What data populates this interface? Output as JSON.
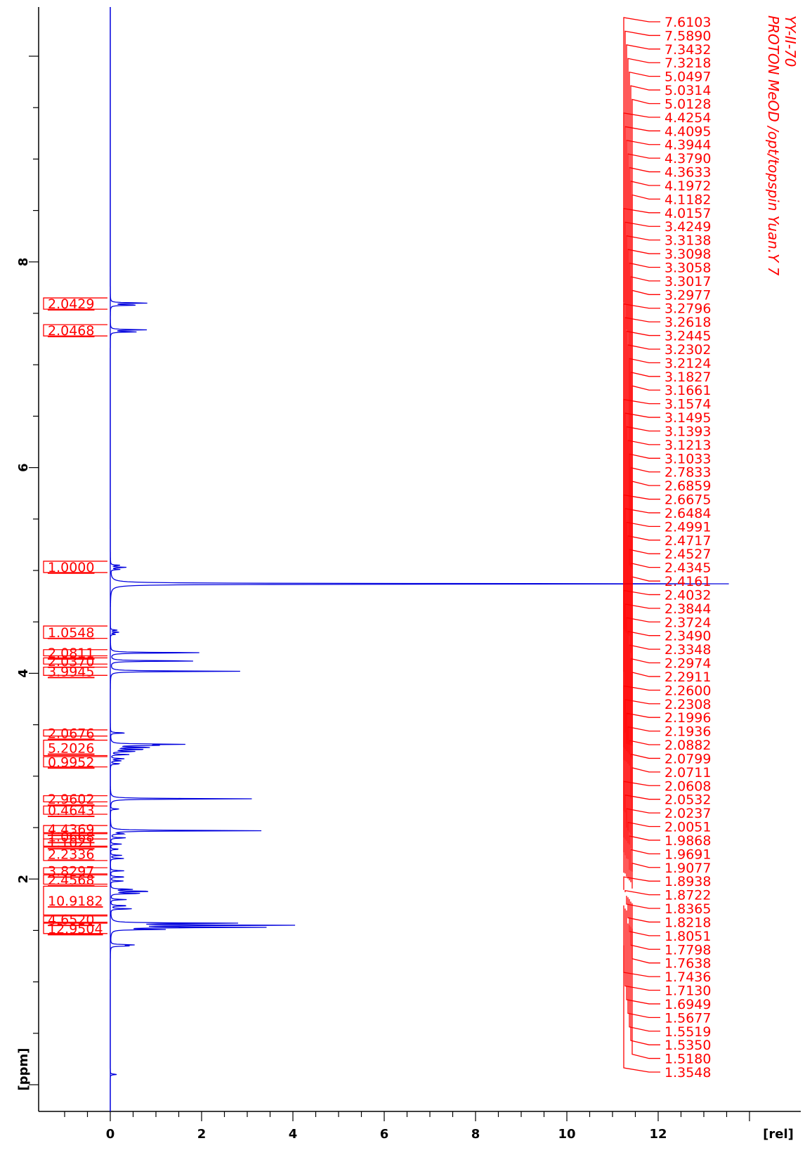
{
  "chart_data": {
    "type": "line",
    "title_lines": [
      "YY-II-70",
      "PROTON MeOD /opt/topspin Yuan.Y 7"
    ],
    "ppm_axis": {
      "label": "[ppm]",
      "range": [
        0.0,
        10.5
      ],
      "ticks": [
        2,
        4,
        6,
        8
      ],
      "tick_labels": [
        "2",
        "4",
        "6",
        "8"
      ]
    },
    "rel_axis": {
      "label": "[rel]",
      "range": [
        -1.45,
        14.0
      ],
      "ticks": [
        0,
        2,
        4,
        6,
        8,
        10,
        12
      ],
      "tick_labels": [
        "0",
        "2",
        "4",
        "6",
        "8",
        "10",
        "12"
      ]
    },
    "peaks": [
      {
        "ppm": 7.6,
        "height": 0.85
      },
      {
        "ppm": 7.58,
        "height": 0.62
      },
      {
        "ppm": 7.34,
        "height": 0.8
      },
      {
        "ppm": 7.32,
        "height": 0.6
      },
      {
        "ppm": 5.05,
        "height": 0.22
      },
      {
        "ppm": 5.03,
        "height": 0.35
      },
      {
        "ppm": 5.01,
        "height": 0.2
      },
      {
        "ppm": 4.87,
        "height": 13.6
      },
      {
        "ppm": 4.42,
        "height": 0.15
      },
      {
        "ppm": 4.4,
        "height": 0.2
      },
      {
        "ppm": 4.38,
        "height": 0.12
      },
      {
        "ppm": 4.2,
        "height": 2.05
      },
      {
        "ppm": 4.12,
        "height": 2.0
      },
      {
        "ppm": 4.02,
        "height": 2.85
      },
      {
        "ppm": 3.42,
        "height": 0.35
      },
      {
        "ppm": 3.31,
        "height": 1.55
      },
      {
        "ppm": 3.3,
        "height": 0.95
      },
      {
        "ppm": 3.28,
        "height": 0.9
      },
      {
        "ppm": 3.26,
        "height": 0.8
      },
      {
        "ppm": 3.24,
        "height": 0.55
      },
      {
        "ppm": 3.21,
        "height": 0.4
      },
      {
        "ppm": 3.17,
        "height": 0.3
      },
      {
        "ppm": 3.15,
        "height": 0.25
      },
      {
        "ppm": 3.12,
        "height": 0.22
      },
      {
        "ppm": 2.78,
        "height": 3.1
      },
      {
        "ppm": 2.68,
        "height": 0.2
      },
      {
        "ppm": 2.47,
        "height": 3.45
      },
      {
        "ppm": 2.44,
        "height": 0.3
      },
      {
        "ppm": 2.4,
        "height": 0.35
      },
      {
        "ppm": 2.34,
        "height": 0.25
      },
      {
        "ppm": 2.29,
        "height": 0.2
      },
      {
        "ppm": 2.23,
        "height": 0.25
      },
      {
        "ppm": 2.2,
        "height": 0.3
      },
      {
        "ppm": 2.08,
        "height": 0.3
      },
      {
        "ppm": 2.02,
        "height": 0.35
      },
      {
        "ppm": 1.98,
        "height": 0.3
      },
      {
        "ppm": 1.9,
        "height": 0.5
      },
      {
        "ppm": 1.88,
        "height": 0.95
      },
      {
        "ppm": 1.86,
        "height": 0.7
      },
      {
        "ppm": 1.8,
        "height": 0.35
      },
      {
        "ppm": 1.74,
        "height": 0.4
      },
      {
        "ppm": 1.71,
        "height": 0.5
      },
      {
        "ppm": 1.57,
        "height": 2.9
      },
      {
        "ppm": 1.55,
        "height": 3.95
      },
      {
        "ppm": 1.53,
        "height": 3.25
      },
      {
        "ppm": 1.51,
        "height": 1.1
      },
      {
        "ppm": 1.36,
        "height": 0.5
      },
      {
        "ppm": 1.35,
        "height": 0.4
      },
      {
        "ppm": 0.1,
        "height": 0.15
      }
    ],
    "peak_labels": [
      "7.6103",
      "7.5890",
      "7.3432",
      "7.3218",
      "5.0497",
      "5.0314",
      "5.0128",
      "4.4254",
      "4.4095",
      "4.3944",
      "4.3790",
      "4.3633",
      "4.1972",
      "4.1182",
      "4.0157",
      "3.4249",
      "3.3138",
      "3.3098",
      "3.3058",
      "3.3017",
      "3.2977",
      "3.2796",
      "3.2618",
      "3.2445",
      "3.2302",
      "3.2124",
      "3.1827",
      "3.1661",
      "3.1574",
      "3.1495",
      "3.1393",
      "3.1213",
      "3.1033",
      "2.7833",
      "2.6859",
      "2.6675",
      "2.6484",
      "2.4991",
      "2.4717",
      "2.4527",
      "2.4345",
      "2.4161",
      "2.4032",
      "2.3844",
      "2.3724",
      "2.3490",
      "2.3348",
      "2.2974",
      "2.2911",
      "2.2600",
      "2.2308",
      "2.1996",
      "2.1936",
      "2.0882",
      "2.0799",
      "2.0711",
      "2.0608",
      "2.0532",
      "2.0237",
      "2.0051",
      "1.9868",
      "1.9691",
      "1.9077",
      "1.8938",
      "1.8722",
      "1.8365",
      "1.8218",
      "1.8051",
      "1.7798",
      "1.7638",
      "1.7436",
      "1.7130",
      "1.6949",
      "1.5677",
      "1.5519",
      "1.5350",
      "1.5180",
      "1.3548"
    ],
    "integrals": [
      {
        "label": "2.0429",
        "from": 7.65,
        "to": 7.54
      },
      {
        "label": "2.0468",
        "from": 7.39,
        "to": 7.28
      },
      {
        "label": "1.0000",
        "from": 5.09,
        "to": 4.98
      },
      {
        "label": "1.0548",
        "from": 4.46,
        "to": 4.34
      },
      {
        "label": "2.0811",
        "from": 4.23,
        "to": 4.17
      },
      {
        "label": "2.0370",
        "from": 4.15,
        "to": 4.09
      },
      {
        "label": "3.9945",
        "from": 4.06,
        "to": 3.98
      },
      {
        "label": "2.0676",
        "from": 3.45,
        "to": 3.39
      },
      {
        "label": "5.2026",
        "from": 3.35,
        "to": 3.2
      },
      {
        "label": "0.9952",
        "from": 3.19,
        "to": 3.09
      },
      {
        "label": "2.9602",
        "from": 2.81,
        "to": 2.75
      },
      {
        "label": "0.4643",
        "from": 2.71,
        "to": 2.63
      },
      {
        "label": "4.4369",
        "from": 2.52,
        "to": 2.45
      },
      {
        "label": "1.0668",
        "from": 2.44,
        "to": 2.39
      },
      {
        "label": "1.1021",
        "from": 2.39,
        "to": 2.32
      },
      {
        "label": "2.2336",
        "from": 2.31,
        "to": 2.18
      },
      {
        "label": "3.8297",
        "from": 2.11,
        "to": 2.05
      },
      {
        "label": "2.4568",
        "from": 2.04,
        "to": 1.95
      },
      {
        "label": "10.9182",
        "from": 1.93,
        "to": 1.65
      },
      {
        "label": "4.6520",
        "from": 1.64,
        "to": 1.58
      },
      {
        "label": "12.9504",
        "from": 1.57,
        "to": 1.47
      }
    ],
    "colors": {
      "spectrum": "#0000dd",
      "annotations": "#ff0000",
      "axes": "#000000"
    }
  }
}
